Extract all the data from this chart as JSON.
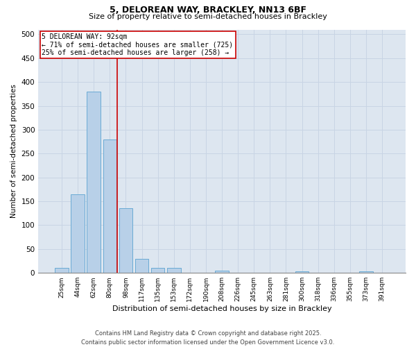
{
  "title_line1": "5, DELOREAN WAY, BRACKLEY, NN13 6BF",
  "title_line2": "Size of property relative to semi-detached houses in Brackley",
  "xlabel": "Distribution of semi-detached houses by size in Brackley",
  "ylabel": "Number of semi-detached properties",
  "categories": [
    "25sqm",
    "44sqm",
    "62sqm",
    "80sqm",
    "98sqm",
    "117sqm",
    "135sqm",
    "153sqm",
    "172sqm",
    "190sqm",
    "208sqm",
    "226sqm",
    "245sqm",
    "263sqm",
    "281sqm",
    "300sqm",
    "318sqm",
    "336sqm",
    "355sqm",
    "373sqm",
    "391sqm"
  ],
  "values": [
    10,
    165,
    380,
    280,
    135,
    30,
    10,
    10,
    0,
    0,
    5,
    0,
    0,
    0,
    0,
    3,
    0,
    0,
    0,
    3,
    0
  ],
  "bar_color": "#b8d0e8",
  "bar_edge_color": "#6aaad4",
  "grid_color": "#c8d4e4",
  "bg_color": "#dde6f0",
  "vline_color": "#cc0000",
  "vline_pos": 3.45,
  "annotation_text": "5 DELOREAN WAY: 92sqm\n← 71% of semi-detached houses are smaller (725)\n25% of semi-detached houses are larger (258) →",
  "annotation_box_color": "#cc0000",
  "footer_line1": "Contains HM Land Registry data © Crown copyright and database right 2025.",
  "footer_line2": "Contains public sector information licensed under the Open Government Licence v3.0.",
  "ylim": [
    0,
    510
  ],
  "yticks": [
    0,
    50,
    100,
    150,
    200,
    250,
    300,
    350,
    400,
    450,
    500
  ],
  "title1_fontsize": 9,
  "title2_fontsize": 8,
  "xlabel_fontsize": 8,
  "ylabel_fontsize": 7.5,
  "xtick_fontsize": 6.5,
  "ytick_fontsize": 7.5,
  "annotation_fontsize": 7,
  "footer_fontsize": 6
}
